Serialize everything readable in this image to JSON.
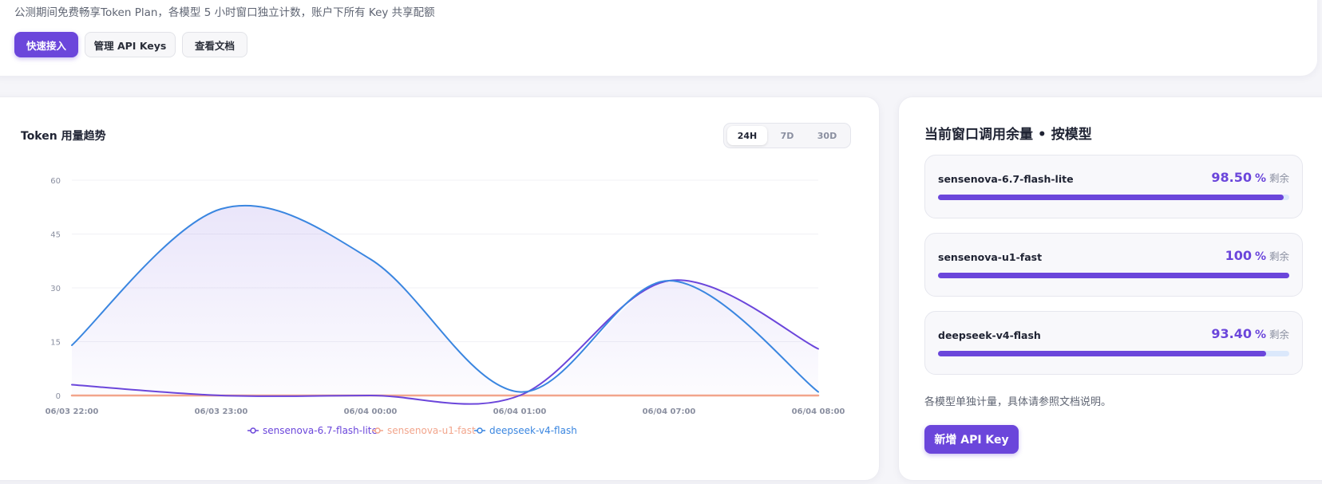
{
  "header": {
    "subtitle": "公测期间免费畅享Token Plan，各模型 5 小时窗口独立计数，账户下所有 Key 共享配额",
    "buttons": {
      "quick_start": "快速接入",
      "manage_keys": "管理 API Keys",
      "view_docs": "查看文档"
    }
  },
  "trend": {
    "title": "Token 用量趋势",
    "ranges": [
      "24H",
      "7D",
      "30D"
    ],
    "active_range": "24H"
  },
  "chart_data": {
    "type": "line",
    "title": "Token 用量趋势",
    "x": [
      "06/03 22:00",
      "06/03 23:00",
      "06/04 00:00",
      "06/04 01:00",
      "06/04 07:00",
      "06/04 08:00"
    ],
    "yticks": [
      0,
      15,
      30,
      45,
      60
    ],
    "ylim": [
      0,
      60
    ],
    "grid": true,
    "legend_position": "bottom",
    "series": [
      {
        "name": "sensenova-6.7-flash-lite",
        "color": "#6b46db",
        "values": [
          3,
          0,
          0,
          0,
          32,
          13
        ]
      },
      {
        "name": "sensenova-u1-fast",
        "color": "#f2a58c",
        "values": [
          0,
          0,
          0,
          0,
          0,
          0
        ]
      },
      {
        "name": "deepseek-v4-flash",
        "color": "#3a86e0",
        "values": [
          14,
          52,
          38,
          1,
          32,
          1
        ]
      }
    ]
  },
  "usage": {
    "title": "当前窗口调用余量 • 按模型",
    "pct_unit": "%",
    "remaining_label": "剩余",
    "models": [
      {
        "name": "sensenova-6.7-flash-lite",
        "percent": "98.50",
        "fill": 0.985
      },
      {
        "name": "sensenova-u1-fast",
        "percent": "100",
        "fill": 1.0
      },
      {
        "name": "deepseek-v4-flash",
        "percent": "93.40",
        "fill": 0.934
      }
    ],
    "note": "各模型单独计量，具体请参照文档说明。",
    "new_key_button": "新增 API Key"
  }
}
